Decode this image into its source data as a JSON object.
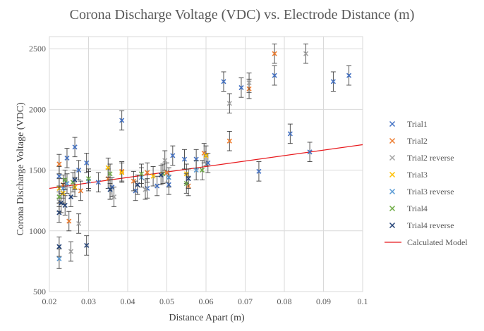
{
  "chart_data": {
    "type": "scatter",
    "title": "Corona Discharge Voltage (VDC) vs. Electrode Distance (m)",
    "xlabel": "Distance Apart (m)",
    "ylabel": "Corona Discharge Voltage (VDC)",
    "xlim": [
      0.02,
      0.1
    ],
    "ylim": [
      500,
      2600
    ],
    "xticks": [
      "0.02",
      "0.03",
      "0.04",
      "0.05",
      "0.06",
      "0.07",
      "0.08",
      "0.09",
      "0.1"
    ],
    "yticks": [
      "500",
      "1000",
      "1500",
      "2000",
      "2500"
    ],
    "grid": true,
    "legend_position": "right",
    "series": [
      {
        "name": "Trial1",
        "marker": "x",
        "color": "#4472c4",
        "error": 80,
        "points": [
          [
            0.0225,
            1450
          ],
          [
            0.0245,
            1600
          ],
          [
            0.0265,
            1690
          ],
          [
            0.0275,
            1500
          ],
          [
            0.0295,
            1560
          ],
          [
            0.0325,
            1400
          ],
          [
            0.036,
            1360
          ],
          [
            0.0385,
            1910
          ],
          [
            0.042,
            1330
          ],
          [
            0.045,
            1350
          ],
          [
            0.0475,
            1370
          ],
          [
            0.0505,
            1380
          ],
          [
            0.0515,
            1620
          ],
          [
            0.0545,
            1590
          ],
          [
            0.0575,
            1590
          ],
          [
            0.0605,
            1560
          ],
          [
            0.0645,
            2230
          ],
          [
            0.069,
            2180
          ],
          [
            0.0735,
            1490
          ],
          [
            0.0775,
            2280
          ],
          [
            0.0815,
            1800
          ],
          [
            0.0865,
            1650
          ],
          [
            0.0925,
            2230
          ],
          [
            0.0965,
            2280
          ]
        ]
      },
      {
        "name": "Trial2",
        "marker": "x",
        "color": "#ed7d31",
        "error": 80,
        "points": [
          [
            0.0225,
            1550
          ],
          [
            0.0235,
            1380
          ],
          [
            0.025,
            1080
          ],
          [
            0.028,
            1330
          ],
          [
            0.035,
            1430
          ],
          [
            0.0385,
            1490
          ],
          [
            0.0415,
            1410
          ],
          [
            0.045,
            1480
          ],
          [
            0.05,
            1480
          ],
          [
            0.0555,
            1370
          ],
          [
            0.0595,
            1640
          ],
          [
            0.066,
            1740
          ],
          [
            0.071,
            2170
          ],
          [
            0.0775,
            2460
          ]
        ]
      },
      {
        "name": "Trial2 reverse",
        "marker": "x",
        "color": "#a5a5a5",
        "error": 80,
        "points": [
          [
            0.0225,
            1240
          ],
          [
            0.0255,
            830
          ],
          [
            0.0275,
            1060
          ],
          [
            0.0365,
            1280
          ],
          [
            0.0445,
            1340
          ],
          [
            0.0495,
            1580
          ],
          [
            0.066,
            2050
          ],
          [
            0.071,
            2220
          ],
          [
            0.0855,
            2460
          ]
        ]
      },
      {
        "name": "Trial3",
        "marker": "x",
        "color": "#ffc000",
        "error": 80,
        "points": [
          [
            0.0225,
            1350
          ],
          [
            0.0235,
            1310
          ],
          [
            0.0265,
            1360
          ],
          [
            0.035,
            1520
          ],
          [
            0.0385,
            1480
          ],
          [
            0.0465,
            1450
          ],
          [
            0.055,
            1470
          ],
          [
            0.06,
            1620
          ]
        ]
      },
      {
        "name": "Trial3 reverse",
        "marker": "x",
        "color": "#5b9bd5",
        "error": 80,
        "points": [
          [
            0.0225,
            770
          ],
          [
            0.0235,
            1350
          ],
          [
            0.0245,
            1390
          ],
          [
            0.03,
            1410
          ],
          [
            0.0355,
            1340
          ],
          [
            0.0435,
            1440
          ],
          [
            0.0505,
            1440
          ],
          [
            0.0575,
            1500
          ]
        ]
      },
      {
        "name": "Trial4",
        "marker": "x",
        "color": "#70ad47",
        "error": 80,
        "points": [
          [
            0.0225,
            1280
          ],
          [
            0.024,
            1420
          ],
          [
            0.026,
            1400
          ],
          [
            0.03,
            1430
          ],
          [
            0.0355,
            1470
          ],
          [
            0.0435,
            1470
          ],
          [
            0.049,
            1470
          ],
          [
            0.055,
            1390
          ],
          [
            0.059,
            1500
          ]
        ]
      },
      {
        "name": "Trial4 reverse",
        "marker": "x",
        "color": "#264478",
        "error": 80,
        "points": [
          [
            0.0225,
            870
          ],
          [
            0.0225,
            1150
          ],
          [
            0.023,
            1230
          ],
          [
            0.024,
            1210
          ],
          [
            0.0255,
            1280
          ],
          [
            0.0265,
            1420
          ],
          [
            0.0295,
            880
          ],
          [
            0.0355,
            1340
          ],
          [
            0.0425,
            1380
          ],
          [
            0.0485,
            1460
          ],
          [
            0.0555,
            1430
          ]
        ]
      }
    ],
    "model": {
      "name": "Calculated Model",
      "color": "#e8191d",
      "x": [
        0.02,
        0.1
      ],
      "y": [
        1350,
        1710
      ]
    }
  }
}
